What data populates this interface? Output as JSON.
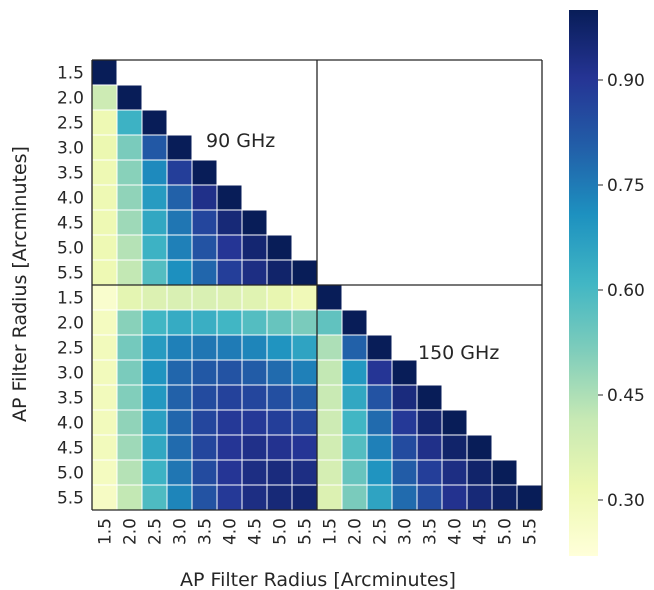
{
  "chart_data": {
    "type": "heatmap",
    "xlabel": "AP Filter Radius [Arcminutes]",
    "ylabel": "AP Filter Radius [Arcminutes]",
    "tick_labels": [
      "1.5",
      "2.0",
      "2.5",
      "3.0",
      "3.5",
      "4.0",
      "4.5",
      "5.0",
      "5.5",
      "1.5",
      "2.0",
      "2.5",
      "3.0",
      "3.5",
      "4.0",
      "4.5",
      "5.0",
      "5.5"
    ],
    "annotations": [
      "90 GHz",
      "150 GHz"
    ],
    "colorbar": {
      "colormap": "YlGnBu",
      "range": [
        0.22,
        1.0
      ],
      "ticks": [
        0.3,
        0.45,
        0.6,
        0.75,
        0.9
      ],
      "tick_labels": [
        "0.30",
        "0.45",
        "0.60",
        "0.75",
        "0.90"
      ]
    },
    "mask": "upper triangle of 90 GHz block and upper-right cross block are blank",
    "values": [
      [
        1.0
      ],
      [
        0.4,
        1.0
      ],
      [
        0.31,
        0.62,
        1.0
      ],
      [
        0.32,
        0.52,
        0.82,
        1.0
      ],
      [
        0.31,
        0.5,
        0.72,
        0.88,
        1.0
      ],
      [
        0.31,
        0.49,
        0.68,
        0.8,
        0.92,
        1.0
      ],
      [
        0.31,
        0.47,
        0.65,
        0.76,
        0.86,
        0.95,
        1.0
      ],
      [
        0.31,
        0.44,
        0.62,
        0.74,
        0.83,
        0.9,
        0.96,
        1.0
      ],
      [
        0.31,
        0.42,
        0.58,
        0.71,
        0.79,
        0.88,
        0.93,
        0.97,
        1.0
      ],
      [
        0.25,
        0.34,
        0.36,
        0.37,
        0.37,
        0.36,
        0.35,
        0.33,
        0.3,
        1.0
      ],
      [
        0.28,
        0.5,
        0.61,
        0.64,
        0.63,
        0.61,
        0.58,
        0.55,
        0.52,
        0.56,
        1.0
      ],
      [
        0.29,
        0.53,
        0.68,
        0.74,
        0.76,
        0.75,
        0.73,
        0.7,
        0.66,
        0.45,
        0.8,
        1.0
      ],
      [
        0.29,
        0.52,
        0.7,
        0.79,
        0.82,
        0.83,
        0.81,
        0.78,
        0.74,
        0.42,
        0.69,
        0.9,
        1.0
      ],
      [
        0.29,
        0.51,
        0.69,
        0.8,
        0.85,
        0.87,
        0.86,
        0.84,
        0.81,
        0.41,
        0.65,
        0.83,
        0.94,
        1.0
      ],
      [
        0.29,
        0.49,
        0.67,
        0.79,
        0.86,
        0.89,
        0.89,
        0.88,
        0.86,
        0.4,
        0.61,
        0.78,
        0.89,
        0.96,
        1.0
      ],
      [
        0.29,
        0.47,
        0.65,
        0.78,
        0.86,
        0.9,
        0.92,
        0.91,
        0.9,
        0.39,
        0.58,
        0.74,
        0.85,
        0.92,
        0.97,
        1.0
      ],
      [
        0.28,
        0.44,
        0.62,
        0.76,
        0.85,
        0.9,
        0.93,
        0.94,
        0.93,
        0.38,
        0.55,
        0.7,
        0.81,
        0.88,
        0.93,
        0.97,
        1.0
      ],
      [
        0.27,
        0.42,
        0.59,
        0.73,
        0.83,
        0.89,
        0.93,
        0.95,
        0.96,
        0.36,
        0.52,
        0.66,
        0.78,
        0.85,
        0.91,
        0.95,
        0.98,
        1.0
      ]
    ]
  }
}
